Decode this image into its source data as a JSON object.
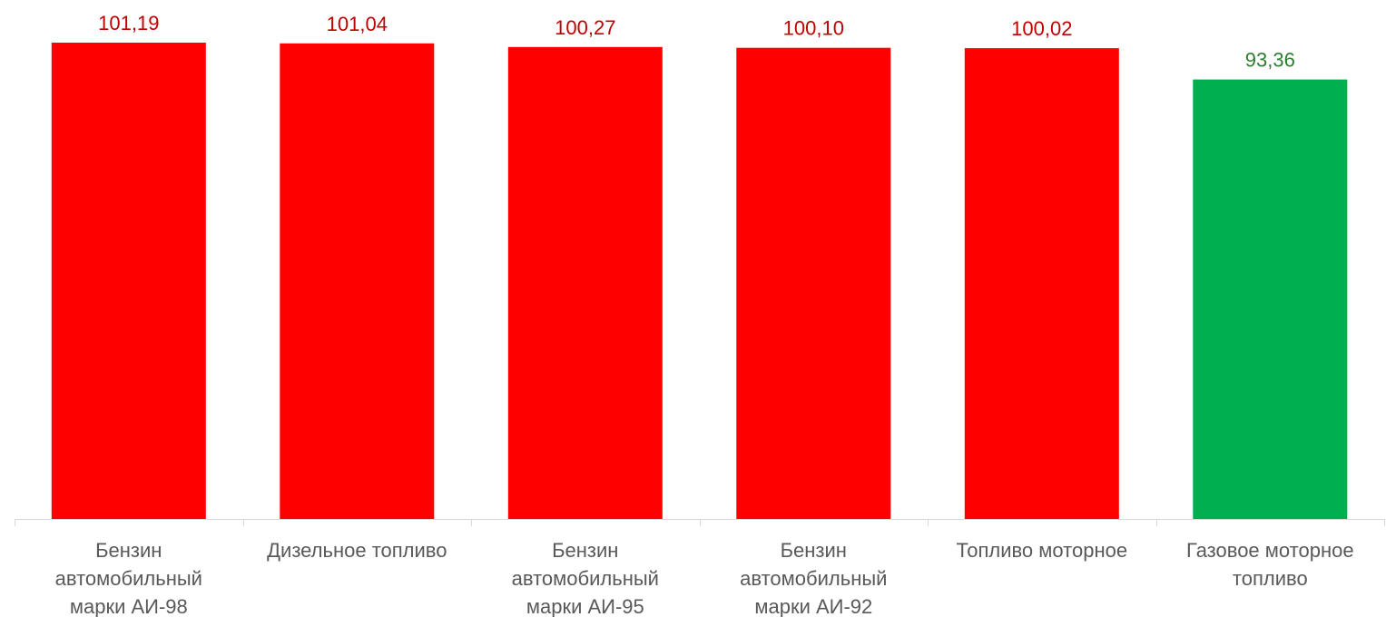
{
  "chart_data": {
    "type": "bar",
    "categories": [
      [
        "Бензин",
        "автомобильный",
        "марки АИ-98"
      ],
      [
        "Дизельное топливо"
      ],
      [
        "Бензин",
        "автомобильный",
        "марки АИ-95"
      ],
      [
        "Бензин",
        "автомобильный",
        "марки АИ-92"
      ],
      [
        "Топливо моторное"
      ],
      [
        "Газовое моторное",
        "топливо"
      ]
    ],
    "values": [
      101.19,
      101.04,
      100.27,
      100.1,
      100.02,
      93.36
    ],
    "value_labels": [
      "101,19",
      "101,04",
      "100,27",
      "100,10",
      "100,02",
      "93,36"
    ],
    "bar_colors": [
      "#ff0000",
      "#ff0000",
      "#ff0000",
      "#ff0000",
      "#ff0000",
      "#00b050"
    ],
    "label_colors": [
      "#c00000",
      "#c00000",
      "#c00000",
      "#c00000",
      "#c00000",
      "#2e7d32"
    ],
    "axis_color": "#d9d9d9",
    "ylim": [
      0,
      102
    ],
    "grid": false,
    "legend": "none"
  }
}
